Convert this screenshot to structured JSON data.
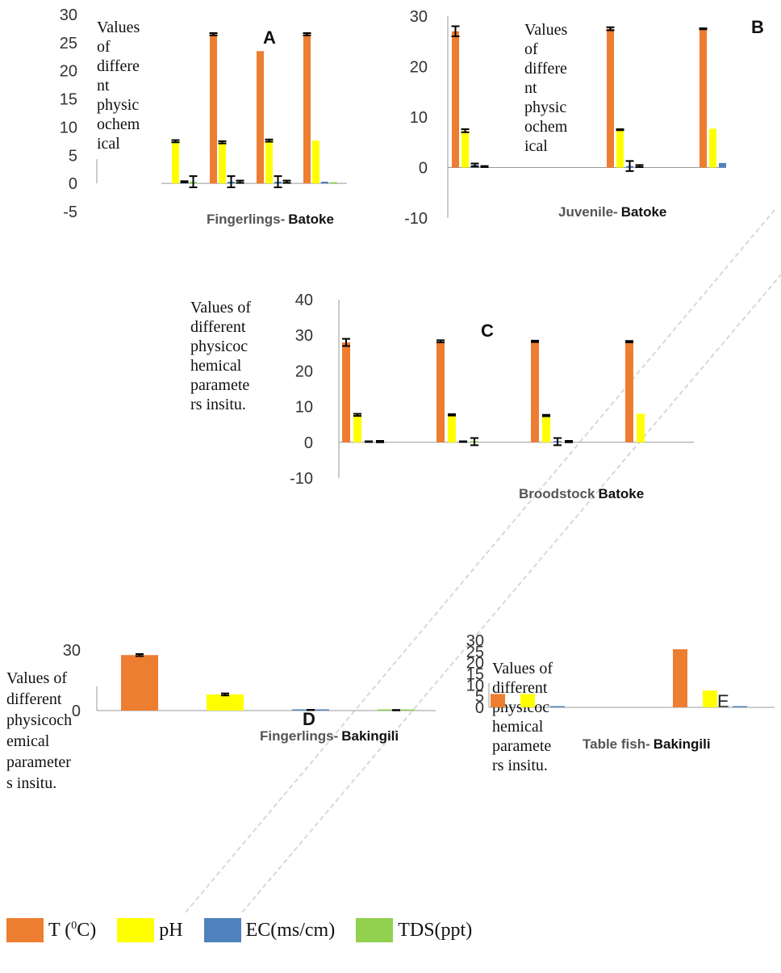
{
  "legend": [
    {
      "pre": "T (",
      "sup": "0",
      "post": "C)",
      "color": "#ED7D31"
    },
    {
      "pre": "pH",
      "sup": "",
      "post": "",
      "color": "#FFFF00"
    },
    {
      "pre": "EC(ms/cm)",
      "sup": "",
      "post": "",
      "color": "#4F81BD"
    },
    {
      "pre": "TDS(ppt)",
      "sup": "",
      "post": "",
      "color": "#92D050"
    }
  ],
  "colors": {
    "T": "#ED7D31",
    "pH": "#FFFF00",
    "EC": "#4F81BD",
    "TDS": "#92D050"
  },
  "chart_data": [
    {
      "id": "A",
      "type": "bar",
      "letter": "A",
      "title_prefix": "Fingerlings-",
      "title_bold": "Batoke",
      "ylabel_lines": [
        "Values",
        "of",
        "differe",
        "nt",
        "physic",
        "ochem",
        "ical"
      ],
      "ylim": [
        -5,
        30
      ],
      "yticks": [
        "30",
        "25",
        "20",
        "15",
        "10",
        "5",
        "0",
        "-5"
      ],
      "tick_values": [
        30,
        25,
        20,
        15,
        10,
        5,
        0,
        -5
      ],
      "series_order": [
        "T",
        "pH",
        "EC",
        "TDS"
      ],
      "groups": [
        {
          "values": [
            null,
            7.5,
            0.3,
            0.3
          ],
          "errors": [
            0,
            0.2,
            0.1,
            1.0
          ]
        },
        {
          "values": [
            26.5,
            7.3,
            0.3,
            0.3
          ],
          "errors": [
            0.2,
            0.2,
            1.0,
            0.2
          ]
        },
        {
          "values": [
            23.5,
            7.6,
            0.3,
            0.3
          ],
          "errors": [
            0,
            0.2,
            1.0,
            0.2
          ]
        },
        {
          "values": [
            26.5,
            7.6,
            0.3,
            0.1
          ],
          "errors": [
            0.2,
            0,
            0,
            0
          ]
        }
      ]
    },
    {
      "id": "B",
      "type": "bar",
      "letter": "B",
      "title_prefix": "Juvenile-",
      "title_bold": "Batoke",
      "ylabel_lines": [
        "Values",
        "of",
        "differe",
        "nt",
        "physic",
        "ochem",
        "ical"
      ],
      "ylim": [
        -10,
        30
      ],
      "yticks": [
        "30",
        "20",
        "10",
        "0",
        "-10"
      ],
      "tick_values": [
        30,
        20,
        10,
        0,
        -10
      ],
      "series_order": [
        "T",
        "pH",
        "EC",
        "TDS"
      ],
      "groups": [
        {
          "values": [
            27.0,
            7.3,
            0.5,
            0.2
          ],
          "errors": [
            1.0,
            0.3,
            0.3,
            0.1
          ]
        },
        {
          "values": [
            27.5,
            7.5,
            0.3,
            0.3
          ],
          "errors": [
            0.3,
            0.1,
            1.0,
            0.2
          ]
        },
        {
          "values": [
            27.5,
            7.7,
            0.9,
            null
          ],
          "errors": [
            0.1,
            0,
            0,
            0
          ]
        }
      ]
    },
    {
      "id": "C",
      "type": "bar",
      "letter": "C",
      "title_prefix": "Broodstock",
      "title_bold": "Batoke",
      "ylabel_lines": [
        "Values of",
        "different",
        "physicoc",
        "hemical",
        "paramete",
        "rs insitu."
      ],
      "ylim": [
        -10,
        40
      ],
      "yticks": [
        "40",
        "30",
        "20",
        "10",
        "0",
        "-10"
      ],
      "tick_values": [
        40,
        30,
        20,
        10,
        0,
        -10
      ],
      "series_order": [
        "T",
        "pH",
        "EC",
        "TDS"
      ],
      "groups": [
        {
          "values": [
            28.0,
            7.7,
            0.2,
            0.2
          ],
          "errors": [
            1.0,
            0.3,
            0.1,
            0.2
          ]
        },
        {
          "values": [
            28.3,
            7.7,
            0.2,
            0.2
          ],
          "errors": [
            0.3,
            0.2,
            0.1,
            1.0
          ]
        },
        {
          "values": [
            28.3,
            7.5,
            0.2,
            0.2
          ],
          "errors": [
            0.2,
            0.2,
            1.0,
            0.2
          ]
        },
        {
          "values": [
            28.2,
            8.0,
            null,
            null
          ],
          "errors": [
            0.2,
            0,
            0,
            0
          ]
        }
      ]
    },
    {
      "id": "D",
      "type": "bar",
      "letter": "D",
      "title_prefix": "Fingerlings-",
      "title_bold": "Bakingili",
      "ylabel_lines": [
        "Values of",
        "different",
        "physicoch",
        "emical",
        "parameter",
        "s insitu."
      ],
      "ylim": [
        0,
        30
      ],
      "yticks": [
        "30",
        "0"
      ],
      "tick_values": [
        30,
        0
      ],
      "series_order": [
        "T",
        "pH",
        "EC",
        "TDS"
      ],
      "groups": [
        {
          "values": [
            27.5,
            8.0,
            0.3,
            0.2
          ],
          "errors": [
            0.5,
            0.5,
            0.1,
            0.1
          ]
        }
      ]
    },
    {
      "id": "E",
      "type": "bar",
      "letter": "E",
      "title_prefix": "Table fish-",
      "title_bold": "Bakingili",
      "ylabel_lines": [
        "Values of",
        "different",
        "physicoc",
        "hemical",
        "paramete",
        "rs insitu."
      ],
      "ylim": [
        0,
        30
      ],
      "yticks": [
        "30",
        "25",
        "20",
        "15",
        "10",
        "5",
        "0"
      ],
      "tick_values": [
        30,
        25,
        20,
        15,
        10,
        5,
        0
      ],
      "series_order": [
        "T",
        "pH",
        "EC",
        "TDS"
      ],
      "groups": [
        {
          "values": [
            6.0,
            6.0,
            0.1,
            null
          ],
          "errors": [
            0,
            0,
            0,
            0
          ]
        },
        {
          "values": [
            26.0,
            7.5,
            0.1,
            null
          ],
          "errors": [
            0,
            0,
            0,
            0
          ]
        }
      ]
    }
  ]
}
